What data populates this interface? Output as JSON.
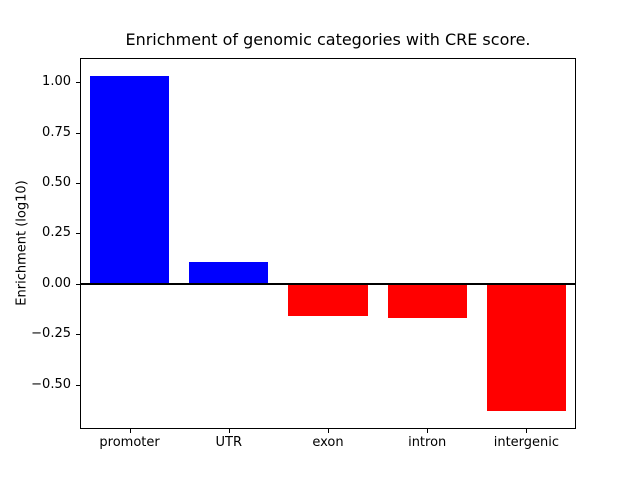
{
  "title": "Enrichment of genomic categories with CRE score.",
  "chart_data": {
    "type": "bar",
    "title": "Enrichment of genomic categories with CRE score.",
    "xlabel": "",
    "ylabel": "Enrichment (log10)",
    "categories": [
      "promoter",
      "UTR",
      "exon",
      "intron",
      "intergenic"
    ],
    "values": [
      1.03,
      0.11,
      -0.16,
      -0.17,
      -0.63
    ],
    "bar_colors": [
      "#0000ff",
      "#0000ff",
      "#ff0000",
      "#ff0000",
      "#ff0000"
    ],
    "ylim": [
      -0.72,
      1.12
    ],
    "yticks": [
      1.0,
      0.75,
      0.5,
      0.25,
      0.0,
      -0.25,
      -0.5
    ],
    "ytick_labels": [
      "1.00",
      "0.75",
      "0.50",
      "0.25",
      "0.00",
      "−0.25",
      "−0.50"
    ],
    "zero_line": true,
    "grid": false,
    "legend": "none",
    "bar_width_fraction": 0.8
  },
  "colors": {
    "positive_bar": "#0000ff",
    "negative_bar": "#ff0000",
    "axis": "#000000",
    "background": "#ffffff"
  }
}
